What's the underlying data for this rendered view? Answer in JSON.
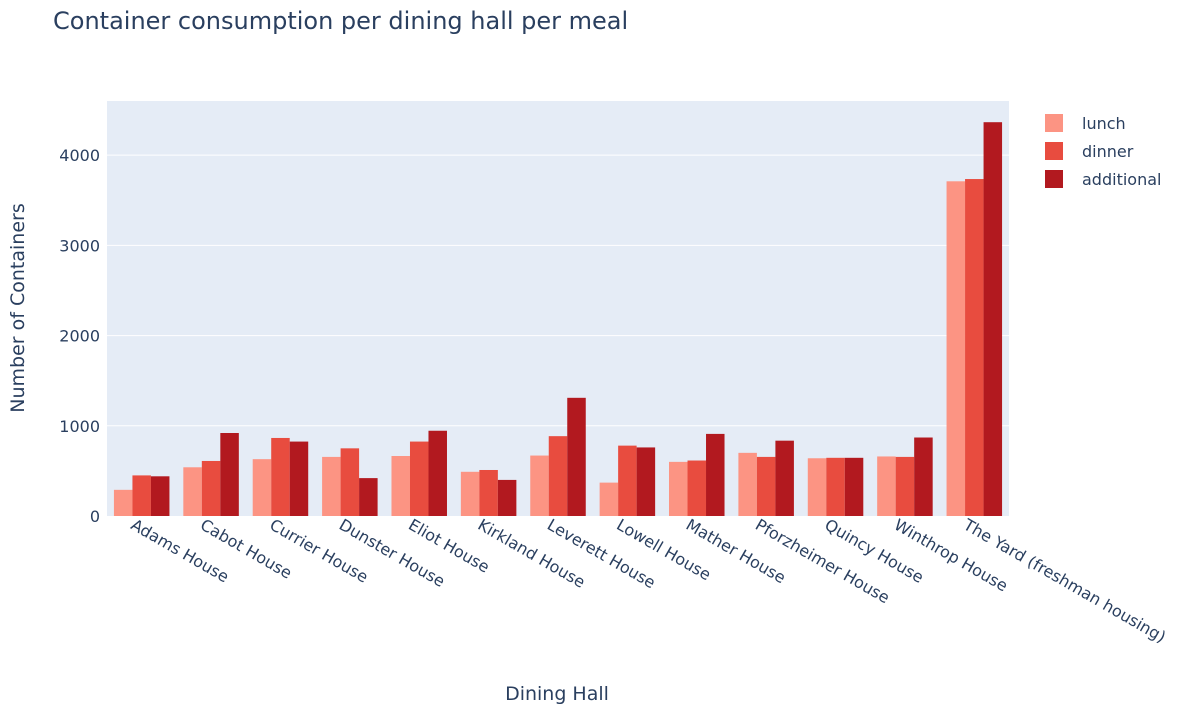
{
  "chart_data": {
    "type": "bar",
    "title": "Container consumption per dining hall per meal",
    "xlabel": "Dining Hall",
    "ylabel": "Number of Containers",
    "categories": [
      "Adams House",
      "Cabot House",
      "Currier House",
      "Dunster House",
      "Eliot House",
      "Kirkland House",
      "Leverett House",
      "Lowell House",
      "Mather House",
      "Pforzheimer House",
      "Quincy House",
      "Winthrop House",
      "The Yard (freshman housing)"
    ],
    "series": [
      {
        "name": "lunch",
        "color": "#fc9483",
        "values": [
          290,
          540,
          630,
          655,
          665,
          490,
          670,
          370,
          600,
          700,
          640,
          660,
          3710
        ]
      },
      {
        "name": "dinner",
        "color": "#e84c3f",
        "values": [
          450,
          610,
          865,
          750,
          825,
          510,
          885,
          780,
          615,
          655,
          645,
          655,
          3735
        ]
      },
      {
        "name": "additional",
        "color": "#b2191f",
        "values": [
          440,
          920,
          825,
          420,
          945,
          400,
          1310,
          760,
          910,
          835,
          645,
          870,
          4365
        ]
      }
    ],
    "ylim": [
      0,
      4600
    ],
    "yticks": [
      0,
      1000,
      2000,
      3000,
      4000
    ],
    "ytick_labels": [
      "0",
      "1000",
      "2000",
      "3000",
      "4000"
    ],
    "legend_position": "top-right",
    "grid": true
  }
}
